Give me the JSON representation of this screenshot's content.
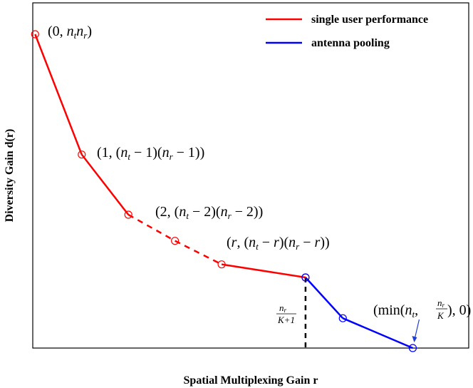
{
  "chart_data": {
    "type": "line",
    "title": "",
    "xlabel": "Spatial Multiplexing Gain r",
    "ylabel": "Diversity Gain d(r)",
    "grid": false,
    "legend_position": "top-right",
    "axis_ticks": "none",
    "colors": {
      "single": "#ff0000",
      "pooling": "#0000ff",
      "marker_line": "#000000"
    },
    "series": [
      {
        "name": "single user performance",
        "color": "#ff0000",
        "points": [
          [
            0,
            6.0
          ],
          [
            1,
            3.7
          ],
          [
            2,
            2.55
          ],
          [
            3,
            2.05
          ],
          [
            4,
            1.6
          ],
          [
            5.8,
            1.35
          ]
        ],
        "solid_segments": [
          [
            0,
            1
          ],
          [
            1,
            2
          ],
          [
            4,
            5
          ]
        ],
        "dashed_segments": [
          [
            2,
            3
          ],
          [
            3,
            4
          ]
        ]
      },
      {
        "name": "antenna pooling",
        "color": "#0000ff",
        "points": [
          [
            5.8,
            1.35
          ],
          [
            6.6,
            0.57
          ],
          [
            8.1,
            0.0
          ]
        ],
        "solid_segments": [
          [
            0,
            1
          ],
          [
            1,
            2
          ]
        ],
        "dashed_segments": []
      }
    ],
    "xlim": [
      -0.05,
      9.3
    ],
    "ylim": [
      0,
      6.6
    ],
    "vertical_marker": {
      "x": 5.8,
      "y": 1.35,
      "label_num": "n",
      "label_num_sub": "r",
      "label_den": "K+1"
    },
    "annotations": [
      {
        "id": "a0",
        "at": [
          0,
          6.0
        ],
        "parts": [
          "(0, ",
          "n",
          "t",
          "n",
          "r",
          ")"
        ]
      },
      {
        "id": "a1",
        "at": [
          1,
          3.7
        ],
        "parts": [
          "(1, (",
          "n",
          "t",
          " − 1)(",
          "n",
          "r",
          " − 1))"
        ]
      },
      {
        "id": "a2",
        "at": [
          2,
          2.55
        ],
        "parts": [
          "(2, (",
          "n",
          "t",
          " − 2)(",
          "n",
          "r",
          " − 2))"
        ]
      },
      {
        "id": "a3",
        "at": [
          4,
          1.6
        ],
        "parts": [
          "(",
          "r",
          ", (",
          "n",
          "t",
          " − ",
          "r",
          ")(",
          "n",
          "r",
          " − ",
          "r",
          "))"
        ]
      },
      {
        "id": "a4",
        "at": [
          8.1,
          0.0
        ],
        "parts": [
          "(min(",
          "n",
          "t",
          ", ",
          "n",
          "r",
          "K",
          "), 0)"
        ]
      }
    ]
  }
}
